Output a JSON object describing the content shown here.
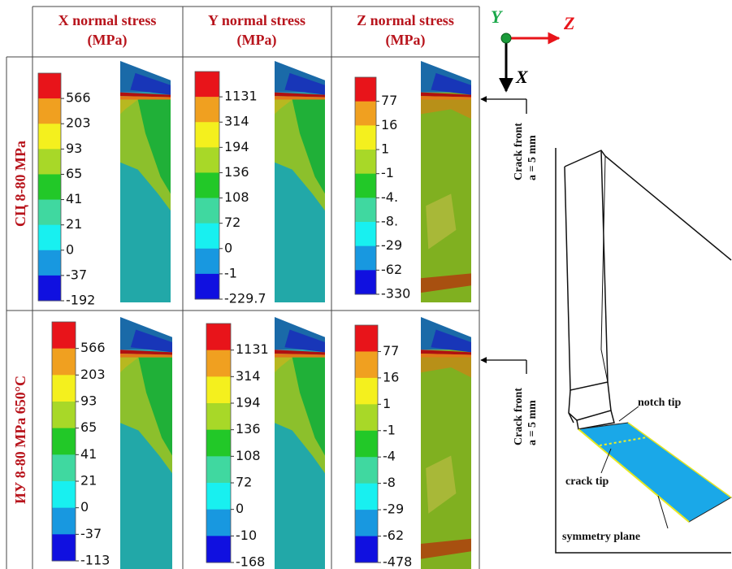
{
  "headers": [
    {
      "line1": "X normal stress",
      "line2": "(MPa)"
    },
    {
      "line1": "Y normal stress",
      "line2": "(MPa)"
    },
    {
      "line1": "Z normal stress",
      "line2": "(MPa)"
    }
  ],
  "rows": [
    {
      "label": "СЦ   8-80 MPa",
      "legends": [
        [
          "566",
          "203",
          "93",
          "65",
          "41",
          "21",
          "0",
          "-37",
          "-192"
        ],
        [
          "1131",
          "314",
          "194",
          "136",
          "108",
          "72",
          "0",
          "-1",
          "-229.7"
        ],
        [
          "77",
          "16",
          "1",
          "-1",
          "-4.",
          "-8.",
          "-29",
          "-62",
          "-330"
        ]
      ]
    },
    {
      "label": "ИУ 8-80 MPa 650°C",
      "legends": [
        [
          "566",
          "203",
          "93",
          "65",
          "41",
          "21",
          "0",
          "-37",
          "-113"
        ],
        [
          "1131",
          "314",
          "194",
          "136",
          "108",
          "72",
          "0",
          "-10",
          "-168"
        ],
        [
          "77",
          "16",
          "1",
          "-1",
          "-4",
          "-8",
          "-29",
          "-62",
          "-478"
        ]
      ]
    }
  ],
  "axes": {
    "y": "Y",
    "z": "Z",
    "x": "X"
  },
  "crack_labels": [
    {
      "title": "Crack front",
      "length": "a = 5 mm"
    },
    {
      "title": "Crack front",
      "length": "a = 5 mm"
    }
  ],
  "specimen": {
    "notch_tip": "notch tip",
    "crack_tip": "crack tip",
    "symmetry_plane": "symmetry plane"
  }
}
